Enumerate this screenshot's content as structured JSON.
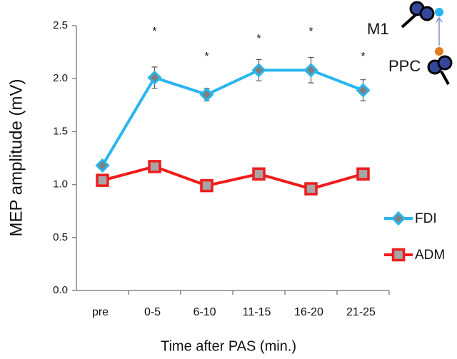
{
  "chart_data": {
    "type": "line",
    "xlabel": "Time after PAS (min.)",
    "ylabel": "MEP amplitude (mV)",
    "categories": [
      "pre",
      "0-5",
      "6-10",
      "11-15",
      "16-20",
      "21-25"
    ],
    "series": [
      {
        "name": "FDI",
        "color": "#29b6ef",
        "marker": "diamond",
        "values": [
          1.18,
          2.01,
          1.85,
          2.08,
          2.08,
          1.89
        ],
        "errors": [
          0.02,
          0.1,
          0.06,
          0.1,
          0.12,
          0.1
        ]
      },
      {
        "name": "ADM",
        "color": "#ee1c1c",
        "marker": "square",
        "values": [
          1.04,
          1.17,
          0.99,
          1.1,
          0.96,
          1.1
        ]
      }
    ],
    "annotations": [
      null,
      "*",
      "*",
      "*",
      "*",
      "*"
    ],
    "ylim": [
      0,
      2.5
    ],
    "yticks": [
      {
        "value": 0,
        "label": "0.0"
      },
      0.5,
      {
        "value": 1,
        "label": "1.0"
      },
      1.5,
      {
        "value": 2,
        "label": "2.0"
      },
      2.5
    ],
    "legend": "right",
    "inset": {
      "labels": [
        "M1",
        "PPC"
      ]
    }
  }
}
